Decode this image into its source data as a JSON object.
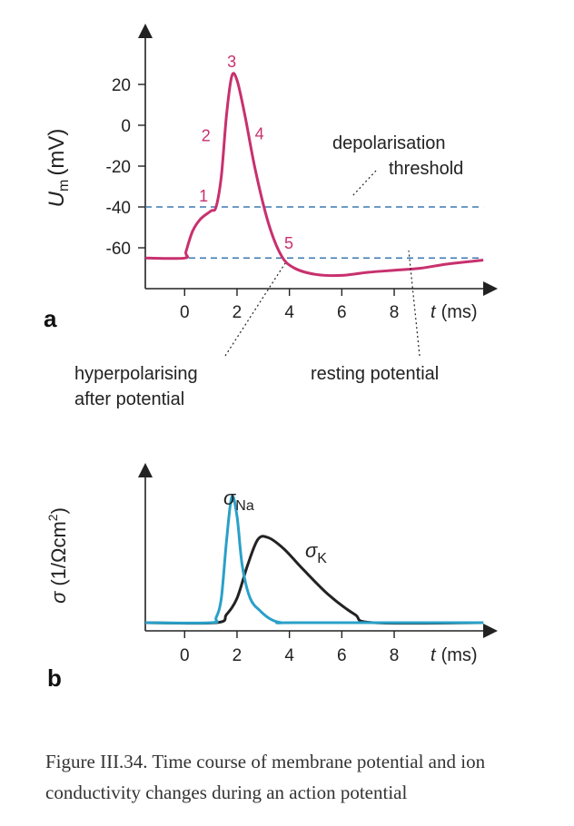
{
  "colors": {
    "potential": "#c8306e",
    "dashed": "#3a78b0",
    "na": "#2aa0c8",
    "k": "#222222",
    "axis": "#222222"
  },
  "chart_data": [
    {
      "panel": "a",
      "type": "line",
      "ylabel_main": "U",
      "ylabel_sub": "m",
      "ylabel_unit": "(mV)",
      "xlabel_var": "t",
      "xlabel_unit": "(ms)",
      "xlim": [
        -1.5,
        11.5
      ],
      "ylim": [
        -80,
        40
      ],
      "yticks": [
        20,
        0,
        -20,
        -40,
        -60
      ],
      "ytick_labels": [
        "20",
        "0",
        "-20",
        "-40",
        "-60"
      ],
      "xticks": [
        0,
        2,
        4,
        6,
        8
      ],
      "xtick_labels": [
        "0",
        "2",
        "4",
        "6",
        "8"
      ],
      "series": [
        {
          "name": "membrane potential",
          "x": [
            -1.5,
            0,
            0.05,
            0.3,
            0.6,
            1.0,
            1.2,
            1.4,
            1.6,
            1.8,
            2.0,
            2.3,
            2.7,
            3.2,
            3.7,
            4.2,
            5.0,
            6.0,
            7.0,
            8.0,
            9.0,
            10.0,
            11.4
          ],
          "y": [
            -65,
            -65,
            -62,
            -52,
            -46,
            -42,
            -40,
            -25,
            5,
            24,
            22,
            5,
            -22,
            -48,
            -64,
            -70,
            -73,
            -73.5,
            -72,
            -71,
            -70,
            -68,
            -66
          ]
        }
      ],
      "threshold_y": -40,
      "resting_y": -65,
      "point_labels": [
        {
          "label": "1",
          "x": 1.0,
          "y": -40
        },
        {
          "label": "2",
          "x": 1.3,
          "y": -5
        },
        {
          "label": "3",
          "x": 1.8,
          "y": 24
        },
        {
          "label": "4",
          "x": 2.3,
          "y": -5
        },
        {
          "label": "5",
          "x": 3.7,
          "y": -64
        }
      ],
      "annotations": {
        "threshold": [
          "depolarisation",
          "threshold"
        ],
        "hyperpolarising": [
          "hyperpolarising",
          "after potential"
        ],
        "resting": "resting potential"
      }
    },
    {
      "panel": "b",
      "type": "line",
      "ylabel_main": "σ",
      "ylabel_unit": "(1/Ωcm",
      "ylabel_sup": "2",
      "ylabel_close": ")",
      "xlabel_var": "t",
      "xlabel_unit": "(ms)",
      "xlim": [
        -1.5,
        11.5
      ],
      "ylim": [
        0,
        1
      ],
      "xticks": [
        0,
        2,
        4,
        6,
        8
      ],
      "xtick_labels": [
        "0",
        "2",
        "4",
        "6",
        "8"
      ],
      "series": [
        {
          "name": "σ_Na",
          "label_main": "σ",
          "label_sub": "Na",
          "x": [
            -1.5,
            1.0,
            1.2,
            1.4,
            1.6,
            1.8,
            2.0,
            2.2,
            2.5,
            2.9,
            3.3,
            3.7,
            4.2,
            11.4
          ],
          "y": [
            0.05,
            0.05,
            0.08,
            0.2,
            0.55,
            0.82,
            0.7,
            0.4,
            0.2,
            0.12,
            0.07,
            0.05,
            0.05,
            0.05
          ]
        },
        {
          "name": "σ_K",
          "label_main": "σ",
          "label_sub": "K",
          "x": [
            -1.5,
            1.2,
            1.6,
            2.0,
            2.4,
            2.8,
            3.2,
            3.8,
            4.5,
            5.5,
            6.5,
            7.2,
            11.4
          ],
          "y": [
            0.05,
            0.05,
            0.1,
            0.2,
            0.4,
            0.56,
            0.57,
            0.5,
            0.38,
            0.22,
            0.1,
            0.05,
            0.05
          ]
        }
      ]
    }
  ],
  "caption": "Figure III.34. Time course of membrane potential and ion conductivity changes during an action potential"
}
